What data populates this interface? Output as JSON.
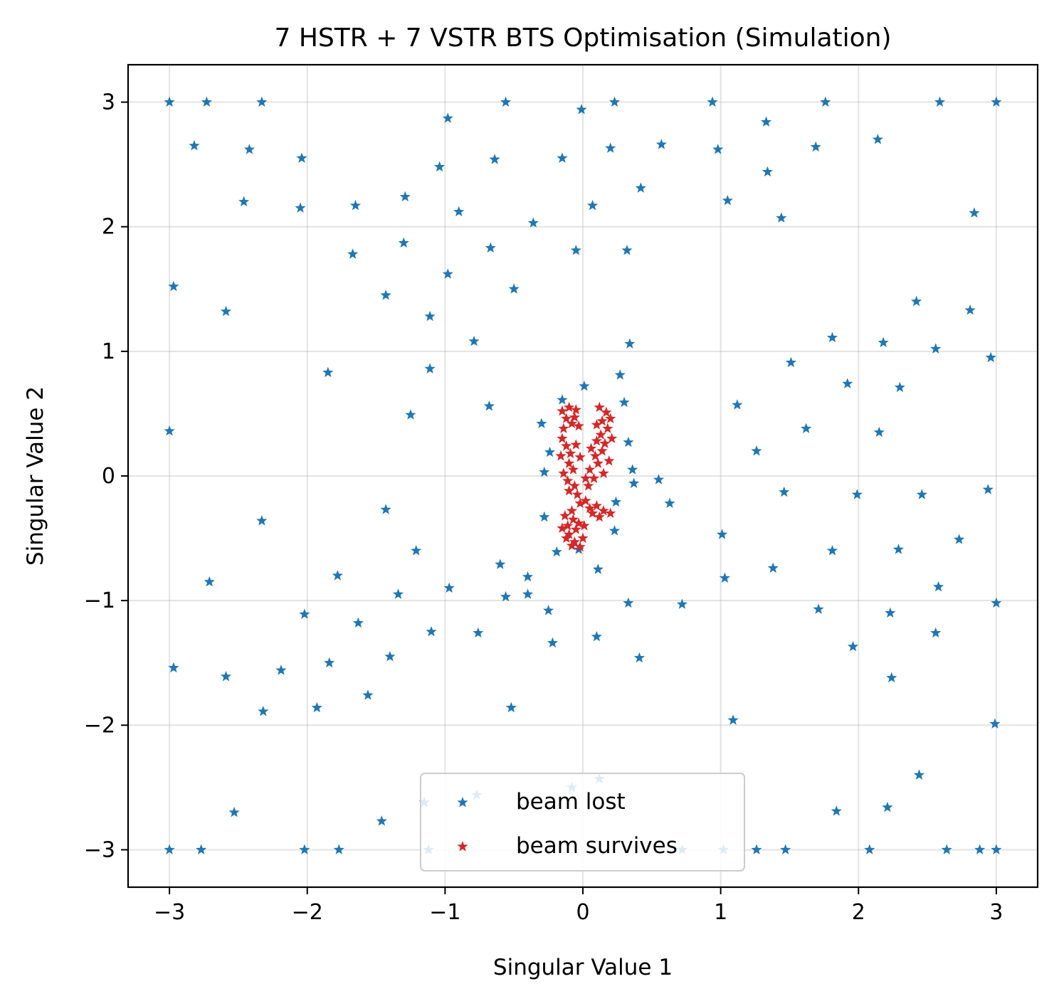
{
  "chart_data": {
    "type": "scatter",
    "title": "7 HSTR + 7 VSTR BTS Optimisation (Simulation)",
    "xlabel": "Singular Value 1",
    "ylabel": "Singular Value 2",
    "xlim": [
      -3.3,
      3.3
    ],
    "ylim": [
      -3.3,
      3.3
    ],
    "xticks": [
      -3,
      -2,
      -1,
      0,
      1,
      2,
      3
    ],
    "yticks": [
      -3,
      -2,
      -1,
      0,
      1,
      2,
      3
    ],
    "xtick_labels": [
      "−3",
      "−2",
      "−1",
      "0",
      "1",
      "2",
      "3"
    ],
    "ytick_labels": [
      "−3",
      "−2",
      "−1",
      "0",
      "1",
      "2",
      "3"
    ],
    "grid": true,
    "legend_position": "bottom-center",
    "series": [
      {
        "name": "beam lost",
        "color": "#1f77b4",
        "marker": "star",
        "points": [
          [
            -3.0,
            3.0
          ],
          [
            -2.73,
            3.0
          ],
          [
            -2.33,
            3.0
          ],
          [
            -0.56,
            3.0
          ],
          [
            0.23,
            3.0
          ],
          [
            0.94,
            3.0
          ],
          [
            1.76,
            3.0
          ],
          [
            2.59,
            3.0
          ],
          [
            3.0,
            3.0
          ],
          [
            -0.98,
            2.87
          ],
          [
            -0.01,
            2.94
          ],
          [
            1.33,
            2.84
          ],
          [
            -2.82,
            2.65
          ],
          [
            -2.42,
            2.62
          ],
          [
            -2.04,
            2.55
          ],
          [
            -1.04,
            2.48
          ],
          [
            -0.64,
            2.54
          ],
          [
            -0.15,
            2.55
          ],
          [
            0.2,
            2.63
          ],
          [
            0.57,
            2.66
          ],
          [
            0.98,
            2.62
          ],
          [
            1.69,
            2.64
          ],
          [
            2.14,
            2.7
          ],
          [
            1.34,
            2.44
          ],
          [
            -2.46,
            2.2
          ],
          [
            -2.05,
            2.15
          ],
          [
            -1.65,
            2.17
          ],
          [
            -1.29,
            2.24
          ],
          [
            -0.9,
            2.12
          ],
          [
            -0.36,
            2.03
          ],
          [
            0.07,
            2.17
          ],
          [
            0.42,
            2.31
          ],
          [
            1.05,
            2.21
          ],
          [
            1.44,
            2.07
          ],
          [
            2.84,
            2.11
          ],
          [
            -1.67,
            1.78
          ],
          [
            -1.3,
            1.87
          ],
          [
            -0.67,
            1.83
          ],
          [
            -0.05,
            1.81
          ],
          [
            0.32,
            1.81
          ],
          [
            -2.97,
            1.52
          ],
          [
            -0.98,
            1.62
          ],
          [
            -0.5,
            1.5
          ],
          [
            -1.43,
            1.45
          ],
          [
            -2.59,
            1.32
          ],
          [
            -1.11,
            1.28
          ],
          [
            2.42,
            1.4
          ],
          [
            2.81,
            1.33
          ],
          [
            -0.79,
            1.08
          ],
          [
            0.34,
            1.06
          ],
          [
            1.81,
            1.11
          ],
          [
            2.18,
            1.07
          ],
          [
            2.56,
            1.02
          ],
          [
            -1.85,
            0.83
          ],
          [
            -1.11,
            0.86
          ],
          [
            0.27,
            0.81
          ],
          [
            1.51,
            0.91
          ],
          [
            1.92,
            0.74
          ],
          [
            2.3,
            0.71
          ],
          [
            2.96,
            0.95
          ],
          [
            0.01,
            0.72
          ],
          [
            -0.68,
            0.56
          ],
          [
            0.3,
            0.59
          ],
          [
            1.12,
            0.57
          ],
          [
            -0.15,
            0.61
          ],
          [
            -1.25,
            0.49
          ],
          [
            -0.3,
            0.42
          ],
          [
            1.62,
            0.38
          ],
          [
            2.15,
            0.35
          ],
          [
            -3.0,
            0.36
          ],
          [
            0.33,
            0.27
          ],
          [
            1.26,
            0.2
          ],
          [
            -0.24,
            0.19
          ],
          [
            -0.28,
            0.03
          ],
          [
            0.36,
            0.05
          ],
          [
            0.55,
            -0.03
          ],
          [
            0.37,
            -0.06
          ],
          [
            1.46,
            -0.13
          ],
          [
            1.99,
            -0.15
          ],
          [
            2.46,
            -0.15
          ],
          [
            2.94,
            -0.11
          ],
          [
            0.63,
            -0.22
          ],
          [
            0.24,
            -0.21
          ],
          [
            -1.43,
            -0.27
          ],
          [
            -0.28,
            -0.33
          ],
          [
            -2.33,
            -0.36
          ],
          [
            0.23,
            -0.44
          ],
          [
            1.01,
            -0.47
          ],
          [
            2.73,
            -0.51
          ],
          [
            -1.21,
            -0.6
          ],
          [
            -0.19,
            -0.61
          ],
          [
            -0.03,
            -0.59
          ],
          [
            1.81,
            -0.6
          ],
          [
            2.29,
            -0.59
          ],
          [
            -0.6,
            -0.71
          ],
          [
            0.11,
            -0.75
          ],
          [
            1.38,
            -0.74
          ],
          [
            -1.78,
            -0.8
          ],
          [
            -0.4,
            -0.81
          ],
          [
            -2.71,
            -0.85
          ],
          [
            -0.97,
            -0.9
          ],
          [
            -0.4,
            -0.95
          ],
          [
            -1.34,
            -0.95
          ],
          [
            -0.56,
            -0.97
          ],
          [
            1.03,
            -0.82
          ],
          [
            2.58,
            -0.89
          ],
          [
            0.33,
            -1.02
          ],
          [
            0.72,
            -1.03
          ],
          [
            3.0,
            -1.02
          ],
          [
            -0.25,
            -1.08
          ],
          [
            1.71,
            -1.07
          ],
          [
            2.23,
            -1.1
          ],
          [
            -2.02,
            -1.11
          ],
          [
            -1.63,
            -1.18
          ],
          [
            -1.1,
            -1.25
          ],
          [
            -0.76,
            -1.26
          ],
          [
            0.1,
            -1.29
          ],
          [
            2.56,
            -1.26
          ],
          [
            -0.22,
            -1.34
          ],
          [
            1.96,
            -1.37
          ],
          [
            0.41,
            -1.46
          ],
          [
            -1.4,
            -1.45
          ],
          [
            -1.84,
            -1.5
          ],
          [
            -2.97,
            -1.54
          ],
          [
            -2.19,
            -1.56
          ],
          [
            -2.59,
            -1.61
          ],
          [
            2.24,
            -1.62
          ],
          [
            -1.56,
            -1.76
          ],
          [
            -1.93,
            -1.86
          ],
          [
            -2.32,
            -1.89
          ],
          [
            -0.52,
            -1.86
          ],
          [
            1.09,
            -1.96
          ],
          [
            2.99,
            -1.99
          ],
          [
            2.44,
            -2.4
          ],
          [
            -1.15,
            -2.62
          ],
          [
            -0.77,
            -2.56
          ],
          [
            0.12,
            -2.43
          ],
          [
            -0.08,
            -2.5
          ],
          [
            -2.53,
            -2.7
          ],
          [
            1.84,
            -2.69
          ],
          [
            2.21,
            -2.66
          ],
          [
            -1.46,
            -2.77
          ],
          [
            -3.0,
            -3.0
          ],
          [
            -2.77,
            -3.0
          ],
          [
            -2.02,
            -3.0
          ],
          [
            -1.77,
            -3.0
          ],
          [
            -1.12,
            -3.0
          ],
          [
            0.72,
            -3.0
          ],
          [
            1.02,
            -3.0
          ],
          [
            1.26,
            -3.0
          ],
          [
            1.47,
            -3.0
          ],
          [
            2.08,
            -3.0
          ],
          [
            2.64,
            -3.0
          ],
          [
            2.88,
            -3.0
          ],
          [
            3.0,
            -3.0
          ]
        ]
      },
      {
        "name": "beam survives",
        "color": "#d62728",
        "marker": "star",
        "points": [
          [
            -0.15,
            0.52
          ],
          [
            -0.1,
            0.55
          ],
          [
            -0.05,
            0.53
          ],
          [
            -0.12,
            0.46
          ],
          [
            -0.08,
            0.42
          ],
          [
            -0.14,
            0.38
          ],
          [
            -0.06,
            0.47
          ],
          [
            -0.03,
            0.4
          ],
          [
            0.12,
            0.55
          ],
          [
            0.17,
            0.51
          ],
          [
            0.2,
            0.46
          ],
          [
            0.14,
            0.44
          ],
          [
            0.1,
            0.41
          ],
          [
            0.18,
            0.38
          ],
          [
            0.13,
            0.33
          ],
          [
            0.21,
            0.3
          ],
          [
            0.16,
            0.26
          ],
          [
            0.1,
            0.28
          ],
          [
            -0.15,
            0.3
          ],
          [
            -0.12,
            0.24
          ],
          [
            -0.09,
            0.18
          ],
          [
            -0.16,
            0.16
          ],
          [
            -0.1,
            0.1
          ],
          [
            -0.05,
            0.25
          ],
          [
            -0.02,
            0.15
          ],
          [
            -0.07,
            0.05
          ],
          [
            0.06,
            0.22
          ],
          [
            0.09,
            0.16
          ],
          [
            0.14,
            0.2
          ],
          [
            0.19,
            0.12
          ],
          [
            0.11,
            0.1
          ],
          [
            0.05,
            0.05
          ],
          [
            0.15,
            0.02
          ],
          [
            0.08,
            -0.02
          ],
          [
            -0.14,
            0.02
          ],
          [
            -0.11,
            -0.04
          ],
          [
            -0.06,
            -0.08
          ],
          [
            -0.1,
            -0.12
          ],
          [
            -0.04,
            -0.15
          ],
          [
            0.02,
            -0.02
          ],
          [
            0.04,
            -0.08
          ],
          [
            -0.02,
            -0.22
          ],
          [
            0.02,
            -0.2
          ],
          [
            0.05,
            -0.26
          ],
          [
            0.1,
            -0.24
          ],
          [
            0.15,
            -0.28
          ],
          [
            0.2,
            -0.3
          ],
          [
            0.07,
            -0.3
          ],
          [
            0.12,
            -0.33
          ],
          [
            -0.08,
            -0.28
          ],
          [
            -0.13,
            -0.32
          ],
          [
            -0.07,
            -0.35
          ],
          [
            -0.11,
            -0.4
          ],
          [
            -0.15,
            -0.42
          ],
          [
            -0.1,
            -0.47
          ],
          [
            -0.05,
            -0.43
          ],
          [
            -0.12,
            -0.5
          ],
          [
            -0.06,
            -0.53
          ],
          [
            -0.02,
            -0.57
          ],
          [
            -0.08,
            -0.56
          ],
          [
            0.0,
            -0.5
          ],
          [
            -0.03,
            -0.38
          ],
          [
            0.01,
            -0.4
          ]
        ]
      }
    ]
  }
}
